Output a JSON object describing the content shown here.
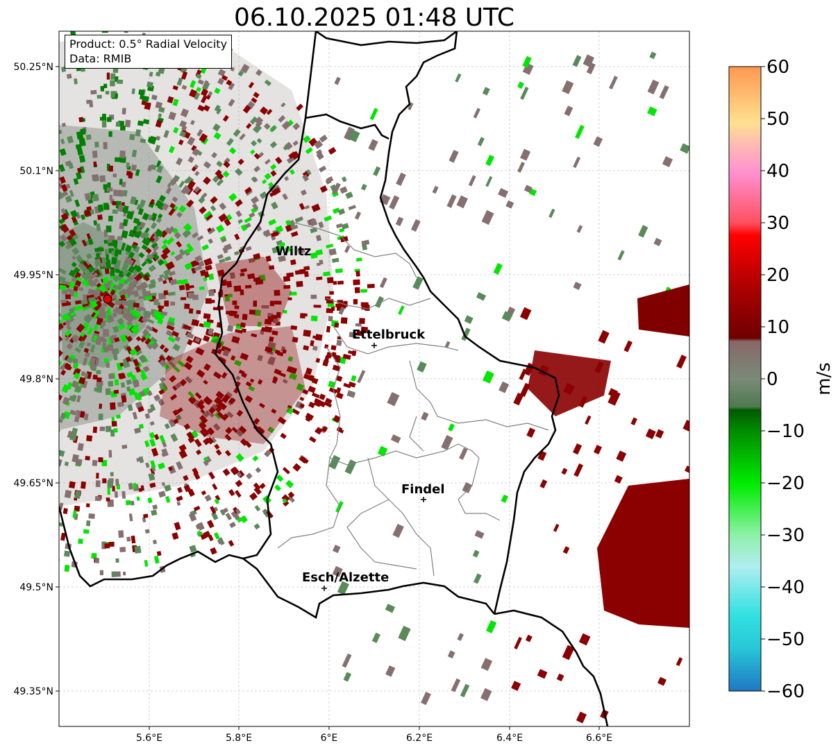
{
  "title": "06.10.2025 01:48 UTC",
  "info_box": {
    "product": "Product: 0.5° Radial Velocity",
    "data": "Data: RMIB"
  },
  "axes": {
    "x_ticks": [
      "5.6°E",
      "5.8°E",
      "6°E",
      "6.2°E",
      "6.4°E",
      "6.6°E"
    ],
    "y_ticks": [
      "50.25°N",
      "50.1°N",
      "49.95°N",
      "49.8°N",
      "49.65°N",
      "49.5°N",
      "49.35°N"
    ]
  },
  "colorbar": {
    "label": "m/s",
    "ticks": [
      "60",
      "50",
      "40",
      "30",
      "20",
      "10",
      "0",
      "−10",
      "−20",
      "−30",
      "−40",
      "−50",
      "−60"
    ],
    "range": [
      -60,
      60
    ]
  },
  "cities": [
    {
      "name": "Wiltz"
    },
    {
      "name": "Ettelbruck"
    },
    {
      "name": "Findel"
    },
    {
      "name": "Esch/Alzette"
    }
  ],
  "colors": {
    "inbound_strong": "#00e600",
    "inbound": "#008000",
    "near_zero_neg": "#5a8a5a",
    "near_zero_pos": "#857070",
    "outbound": "#8b0000",
    "radar_site": "#e00000"
  }
}
